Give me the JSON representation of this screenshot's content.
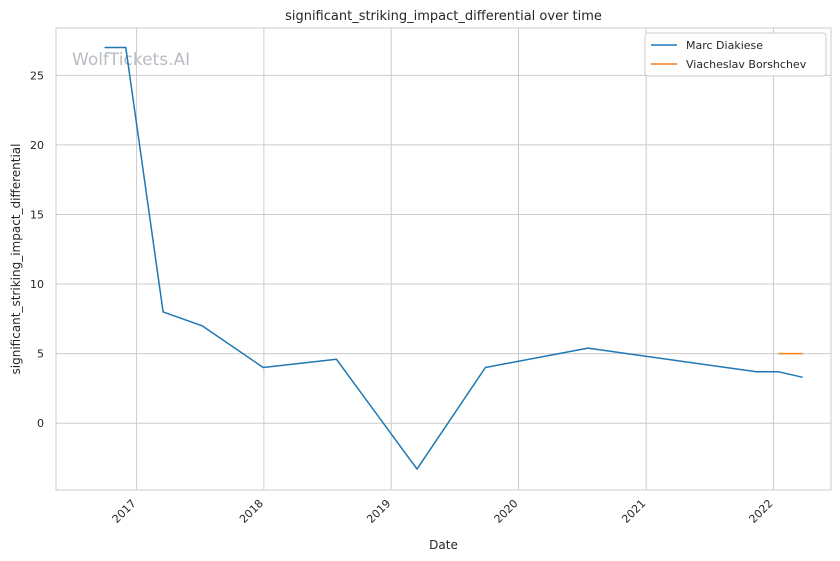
{
  "watermark": "WolfTickets.AI",
  "chart_data": {
    "type": "line",
    "title": "significant_striking_impact_differential over time",
    "xlabel": "Date",
    "ylabel": "significant_striking_impact_differential",
    "x_axis": {
      "type": "date",
      "range": [
        "2016-05-15",
        "2022-06-15"
      ],
      "ticks": [
        {
          "date": "2017-01-01",
          "label": "2017"
        },
        {
          "date": "2018-01-01",
          "label": "2018"
        },
        {
          "date": "2019-01-01",
          "label": "2019"
        },
        {
          "date": "2020-01-01",
          "label": "2020"
        },
        {
          "date": "2021-01-01",
          "label": "2021"
        },
        {
          "date": "2022-01-01",
          "label": "2022"
        }
      ]
    },
    "y_axis": {
      "range": [
        -4.8,
        28.4
      ],
      "ticks": [
        0,
        5,
        10,
        15,
        20,
        25
      ]
    },
    "grid": true,
    "legend_position": "top-right",
    "series": [
      {
        "name": "Marc Diakiese",
        "color": "#1f77b4",
        "points": [
          {
            "x": "2016-10-01",
            "y": 27.0
          },
          {
            "x": "2016-12-01",
            "y": 27.0
          },
          {
            "x": "2017-03-18",
            "y": 8.0
          },
          {
            "x": "2017-07-08",
            "y": 7.0
          },
          {
            "x": "2017-12-30",
            "y": 4.0
          },
          {
            "x": "2018-07-28",
            "y": 4.6
          },
          {
            "x": "2019-03-16",
            "y": -3.3
          },
          {
            "x": "2019-09-28",
            "y": 4.0
          },
          {
            "x": "2020-07-18",
            "y": 5.4
          },
          {
            "x": "2021-11-13",
            "y": 3.7
          },
          {
            "x": "2022-01-15",
            "y": 3.7
          },
          {
            "x": "2022-03-26",
            "y": 3.3
          }
        ]
      },
      {
        "name": "Viacheslav Borshchev",
        "color": "#ff7f0e",
        "points": [
          {
            "x": "2022-01-15",
            "y": 5.0
          },
          {
            "x": "2022-03-26",
            "y": 5.0
          }
        ]
      }
    ]
  }
}
